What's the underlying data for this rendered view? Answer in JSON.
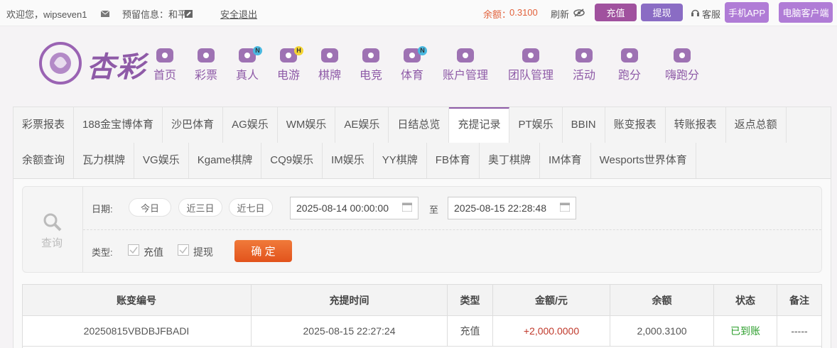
{
  "top_bar": {
    "welcome": "欢迎您，wipseven1",
    "reserved_info": "预留信息：和平",
    "logout": "安全退出",
    "balance_label": "余额：",
    "balance": "0.3100",
    "refresh": "刷新",
    "deposit": "充值",
    "withdraw": "提现",
    "service": "客服",
    "mobile_app": "手机APP",
    "pc_client": "电脑客户端"
  },
  "logo": "杏彩",
  "nav": [
    {
      "label": "首页"
    },
    {
      "label": "彩票"
    },
    {
      "label": "真人",
      "badge": "N"
    },
    {
      "label": "电游",
      "badge": "H"
    },
    {
      "label": "棋牌"
    },
    {
      "label": "电竞"
    },
    {
      "label": "体育",
      "badge": "N"
    },
    {
      "label": "账户管理"
    },
    {
      "label": "团队管理"
    },
    {
      "label": "活动"
    },
    {
      "label": "跑分"
    },
    {
      "label": "嗨跑分"
    }
  ],
  "tabs": {
    "rows": [
      [
        {
          "label": "彩票报表"
        },
        {
          "label": "188金宝博体育"
        },
        {
          "label": "沙巴体育"
        },
        {
          "label": "AG娱乐"
        },
        {
          "label": "WM娱乐"
        },
        {
          "label": "AE娱乐"
        },
        {
          "label": "日结总览"
        },
        {
          "label": "充提记录",
          "active": true
        },
        {
          "label": "PT娱乐"
        },
        {
          "label": "BBIN"
        },
        {
          "label": "账变报表"
        },
        {
          "label": "转账报表"
        },
        {
          "label": "返点总额"
        }
      ],
      [
        {
          "label": "余额查询"
        },
        {
          "label": "瓦力棋牌"
        },
        {
          "label": "VG娱乐"
        },
        {
          "label": "Kgame棋牌"
        },
        {
          "label": "CQ9娱乐"
        },
        {
          "label": "IM娱乐"
        },
        {
          "label": "YY棋牌"
        },
        {
          "label": "FB体育"
        },
        {
          "label": "奥丁棋牌"
        },
        {
          "label": "IM体育"
        },
        {
          "label": "Wesports世界体育"
        }
      ]
    ]
  },
  "filter": {
    "search": "查询",
    "date_label": "日期:",
    "quick_ranges": [
      "今日",
      "近三日",
      "近七日"
    ],
    "start": "2025-08-14 00:00:00",
    "to": "至",
    "end": "2025-08-15 22:28:48",
    "type_label": "类型:",
    "types": [
      "充值",
      "提现"
    ],
    "confirm": "确 定"
  },
  "table": {
    "columns": [
      "账变编号",
      "充提时间",
      "类型",
      "金额/元",
      "余额",
      "状态",
      "备注"
    ],
    "rows": [
      [
        "20250815VBDBJFBADI",
        "2025-08-15 22:27:24",
        "充值",
        "+2,000.0000",
        "2,000.3100",
        "已到账",
        "-----"
      ]
    ]
  }
}
